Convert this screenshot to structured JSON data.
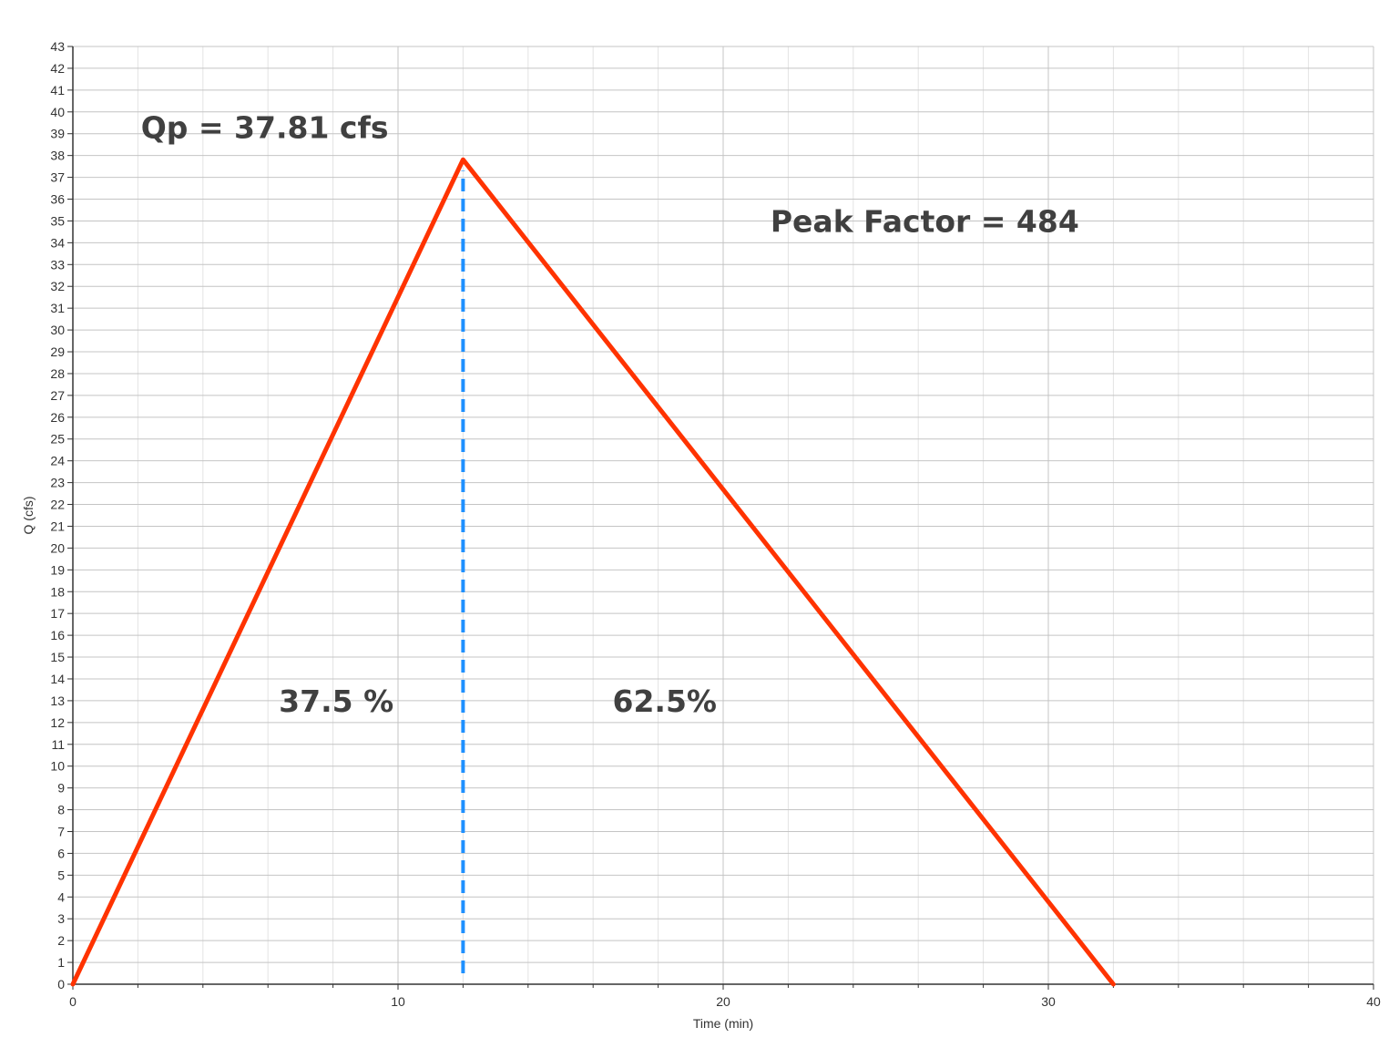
{
  "chart_data": {
    "type": "line",
    "title": "",
    "xlabel": "Time (min)",
    "ylabel": "Q (cfs)",
    "xlim": [
      0,
      40
    ],
    "ylim": [
      0,
      43
    ],
    "x_major_ticks": [
      0,
      10,
      20,
      30,
      40
    ],
    "x_minor_step": 2,
    "y_tick_step": 1,
    "grid": true,
    "legend": "none",
    "series": [
      {
        "color": "#ff3300",
        "style": "solid",
        "x": [
          0,
          12,
          32
        ],
        "y": [
          0,
          37.81,
          0
        ]
      },
      {
        "color": "#1e90ff",
        "style": "dashed",
        "x": [
          12,
          12
        ],
        "y": [
          0.5,
          37.3
        ]
      }
    ],
    "annotations": [
      {
        "text": "Qp = 37.81 cfs",
        "x": 5.9,
        "y": 38.8,
        "anchor": "middle"
      },
      {
        "text": "Peak Factor = 484",
        "x": 26.2,
        "y": 34.5,
        "anchor": "middle"
      },
      {
        "text": "37.5 %",
        "x": 8.1,
        "y": 12.5,
        "anchor": "middle"
      },
      {
        "text": "62.5%",
        "x": 18.2,
        "y": 12.5,
        "anchor": "middle"
      }
    ]
  }
}
